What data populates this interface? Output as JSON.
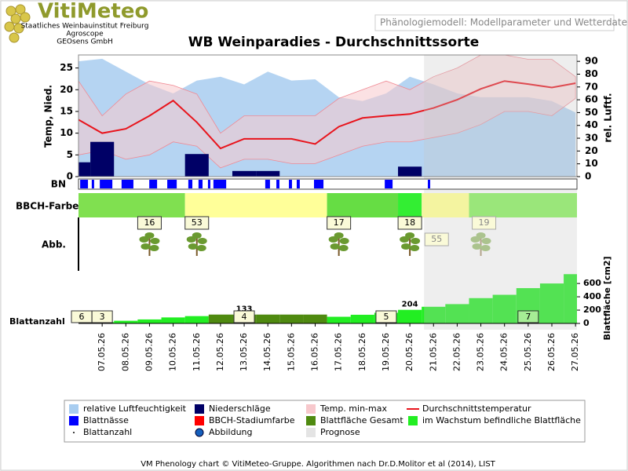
{
  "header": {
    "logo": "VitiMeteo",
    "institutes": [
      "Staatliches Weinbauinstitut Freiburg",
      "Agroscope",
      "GEOsens GmbH"
    ],
    "tab": "Phänologiemodell: Modellparameter und Wetterdaten"
  },
  "chart_data": {
    "type": "phenology",
    "title": "WB Weinparadies - Durchschnittssorte",
    "categories": [
      null,
      "07.05.26",
      "08.05.26",
      "09.05.26",
      "10.05.26",
      "11.05.26",
      "12.05.26",
      "13.05.26",
      "14.05.26",
      "15.05.26",
      "16.05.26",
      "17.05.26",
      "18.05.26",
      "19.05.26",
      "20.05.26",
      "21.05.26",
      "22.05.26",
      "23.05.26",
      "24.05.26",
      "25.05.26",
      "26.05.26",
      "27.05.26"
    ],
    "ylabel": "Temp, Nied.",
    "ylim": [
      0,
      28
    ],
    "yticks": [
      0,
      5,
      10,
      15,
      20,
      25
    ],
    "y2label": "rel. Luftf.",
    "y2lim": [
      0,
      95
    ],
    "y2ticks": [
      0,
      10,
      20,
      30,
      40,
      50,
      60,
      70,
      80,
      90
    ],
    "y3label": "Blattfläche [cm2]",
    "y3lim": [
      0,
      790
    ],
    "y3ticks": [
      0,
      200,
      400,
      600
    ],
    "humidity": {
      "name": "relative Luftfeuchtigkeit",
      "color": "#a8cdf0",
      "axis": "y2",
      "values": [
        90,
        92,
        82,
        72,
        65,
        75,
        78,
        72,
        82,
        75,
        76,
        62,
        59,
        65,
        78,
        72,
        65,
        62,
        62,
        62,
        59,
        50
      ]
    },
    "precipitation": {
      "name": "Niederschläge",
      "color": "#000066",
      "values": [
        3.3,
        8,
        0,
        0,
        0,
        5.2,
        0,
        1.3,
        1.3,
        0,
        0,
        0,
        0,
        0,
        2.3,
        0,
        0,
        0,
        0,
        0,
        0,
        0
      ]
    },
    "temp_range": {
      "name": "Temp. min-max",
      "color": "#f7c8cc",
      "max": [
        22,
        14,
        19,
        22,
        21,
        19,
        10,
        14,
        14,
        14,
        14,
        18,
        20,
        22,
        20,
        23,
        25,
        28,
        28,
        27,
        27,
        23
      ],
      "min": [
        5,
        6,
        4,
        5,
        8,
        7,
        2,
        4,
        4,
        3,
        3,
        5,
        7,
        8,
        8,
        9,
        10,
        12,
        15,
        15,
        14,
        18
      ]
    },
    "temp_mean": {
      "name": "Durchschnittstemperatur",
      "color": "#e8141c",
      "values": [
        13.1,
        10,
        11,
        14,
        17.5,
        12.5,
        6.5,
        8.7,
        8.7,
        8.7,
        7.5,
        11.5,
        13.5,
        14,
        14.4,
        15.8,
        17.7,
        20.2,
        22,
        21.3,
        20.5,
        21.5
      ]
    },
    "leaf_wetness": {
      "name": "Blattnässe",
      "label": "BN",
      "color": "#0000ff",
      "intervals": [
        [
          0.07,
          0.4
        ],
        [
          0.56,
          0.66
        ],
        [
          0.9,
          1.43
        ],
        [
          1.82,
          2.32
        ],
        [
          2.99,
          3.32
        ],
        [
          3.75,
          4.15
        ],
        [
          4.64,
          4.81
        ],
        [
          5.07,
          5.24
        ],
        [
          5.47,
          5.57
        ],
        [
          5.7,
          6.24
        ],
        [
          7.89,
          8.09
        ],
        [
          8.36,
          8.49
        ],
        [
          8.89,
          9.02
        ],
        [
          9.22,
          9.35
        ],
        [
          9.95,
          10.35
        ],
        [
          12.94,
          13.27
        ],
        [
          14.76,
          14.86
        ]
      ]
    },
    "bbch": {
      "name": "BBCH-Stadiumfarbe",
      "label": "BBCH-Farbe",
      "color": "#ff0000",
      "segments": [
        {
          "from": 0,
          "to": 4.5,
          "color": "#80e050"
        },
        {
          "from": 4.5,
          "to": 10.5,
          "color": "#ffff99"
        },
        {
          "from": 10.5,
          "to": 13.5,
          "color": "#66dd44"
        },
        {
          "from": 13.5,
          "to": 14.5,
          "color": "#33ee33"
        },
        {
          "from": 14.5,
          "to": 16.5,
          "color": "#f4f4a0"
        },
        {
          "from": 16.5,
          "to": 21.1,
          "color": "#9ae67a"
        }
      ],
      "stages": [
        {
          "day": 3,
          "label": "16"
        },
        {
          "day": 5,
          "label": "53"
        },
        {
          "day": 11,
          "label": "17"
        },
        {
          "day": 14,
          "label": "18"
        },
        {
          "day": 15,
          "label": "55",
          "forecast": true
        },
        {
          "day": 17,
          "label": "19",
          "forecast": true
        }
      ]
    },
    "images": {
      "name": "Abbildung",
      "label": "Abb.",
      "days": [
        3,
        5,
        11,
        14,
        17
      ]
    },
    "leaf_area_total": {
      "name": "Blattfläche Gesamt",
      "color": "#4f8a10",
      "values": [
        null,
        null,
        null,
        null,
        null,
        null,
        133,
        133,
        133,
        133,
        133,
        null,
        null,
        null,
        null,
        null,
        null,
        null,
        null,
        null,
        null,
        null
      ],
      "value_labels": [
        null,
        null,
        null,
        null,
        null,
        null,
        null,
        "133",
        null,
        null,
        null,
        null,
        null,
        null,
        null,
        null,
        null,
        null,
        null,
        null,
        null,
        null
      ]
    },
    "leaf_area_growing": {
      "name": "im Wachstum befindliche Blattfläche",
      "color": "#22ee22",
      "values": [
        10,
        20,
        40,
        60,
        90,
        110,
        null,
        null,
        null,
        null,
        null,
        100,
        130,
        160,
        204,
        250,
        290,
        380,
        430,
        530,
        600,
        740
      ],
      "value_labels": [
        null,
        null,
        null,
        null,
        null,
        null,
        null,
        null,
        null,
        null,
        null,
        null,
        null,
        null,
        "204",
        null,
        null,
        null,
        null,
        null,
        null,
        null
      ]
    },
    "leaf_count": {
      "name": "Blattanzahl",
      "label": "Blattanzahl",
      "days": [
        0,
        1,
        7,
        13,
        19
      ],
      "values": [
        6,
        3,
        4,
        5,
        7
      ]
    },
    "forecast": {
      "name": "Prognose",
      "color": "#e4e4e4",
      "from": 14.6
    }
  },
  "footer": "VM Phenology chart © VitiMeteo-Gruppe. Algorithmen nach Dr.D.Molitor et al (2014), LIST"
}
